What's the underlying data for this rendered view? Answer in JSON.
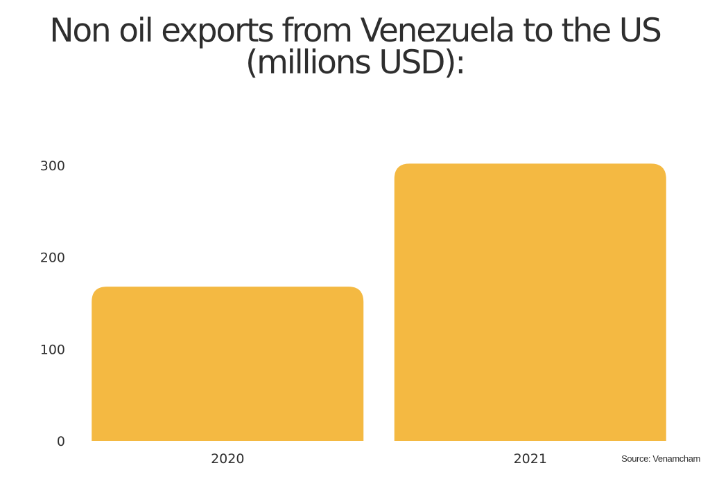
{
  "title_lines": [
    "Non oil exports from Venezuela to the US",
    "(millions USD):"
  ],
  "source_text": "Source: Venamcham",
  "chart_data": {
    "type": "bar",
    "title": "Non oil exports from Venezuela to the US (millions USD):",
    "categories": [
      "2020",
      "2021"
    ],
    "values": [
      168,
      302
    ],
    "y_ticks": [
      "0",
      "100",
      "200",
      "300"
    ],
    "ylim": [
      0,
      300
    ],
    "xlabel": "",
    "ylabel": "",
    "grid": false,
    "bar_color": "#F4B942"
  }
}
